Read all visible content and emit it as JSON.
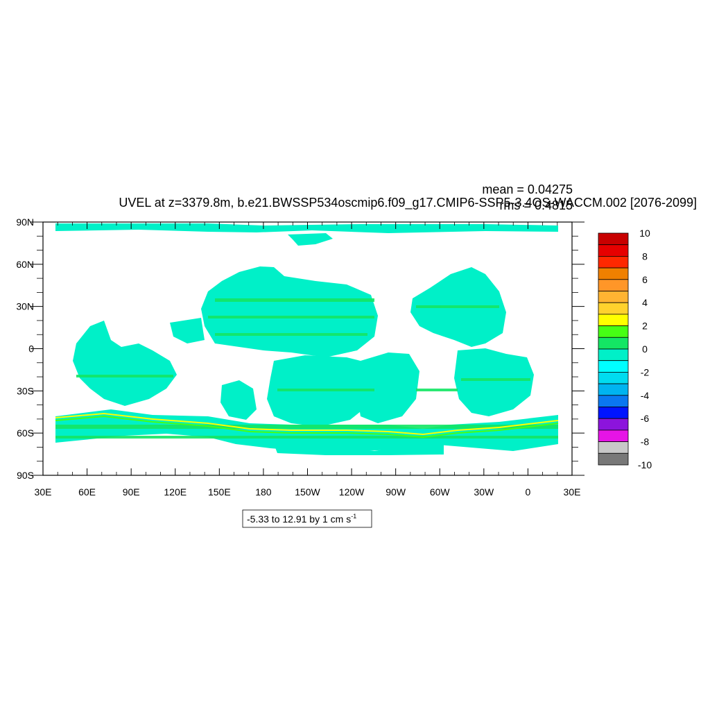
{
  "figure": {
    "title": "UVEL at z=3379.8m, b.e21.BWSSP534oscmip6.f09_g17.CMIP6-SSP5-3.4OS-WACCM.002 [2076-2099]",
    "stats_mean": "mean = 0.04275",
    "stats_rms": "rms = 0.4815",
    "contour_info_prefix": "-5.33 to 12.91 by 1 cm s",
    "contour_info_exponent": "-1"
  },
  "chart_data": {
    "type": "heatmap",
    "variable": "UVEL",
    "depth": "z=3379.8m",
    "period": "[2076-2099]",
    "mean": 0.04275,
    "rms": 0.4815,
    "data_min": -5.33,
    "data_max": 12.91,
    "contour_interval": 1,
    "units": "cm s-1",
    "x_axis": {
      "ticks": [
        "30E",
        "60E",
        "90E",
        "120E",
        "150E",
        "180",
        "150W",
        "120W",
        "90W",
        "60W",
        "30W",
        "0",
        "30E"
      ],
      "range_lon": [
        30,
        390
      ]
    },
    "y_axis": {
      "ticks": [
        "90N",
        "60N",
        "30N",
        "0",
        "30S",
        "60S",
        "90S"
      ],
      "range_lat": [
        -90,
        90
      ]
    },
    "colorbar": {
      "labels": [
        "10",
        "8",
        "6",
        "4",
        "2",
        "0",
        "-2",
        "-4",
        "-6",
        "-8",
        "-10"
      ],
      "bins": [
        {
          "from": 10,
          "to": 9,
          "color": "#c80000"
        },
        {
          "from": 9,
          "to": 8,
          "color": "#e60000"
        },
        {
          "from": 8,
          "to": 7,
          "color": "#ff2800"
        },
        {
          "from": 7,
          "to": 6,
          "color": "#f08000"
        },
        {
          "from": 6,
          "to": 5,
          "color": "#ff9628"
        },
        {
          "from": 5,
          "to": 4,
          "color": "#ffb432"
        },
        {
          "from": 4,
          "to": 3,
          "color": "#ffd22d"
        },
        {
          "from": 3,
          "to": 2,
          "color": "#ffff00"
        },
        {
          "from": 2,
          "to": 1,
          "color": "#46ff14"
        },
        {
          "from": 1,
          "to": 0,
          "color": "#14e664"
        },
        {
          "from": 0,
          "to": -1,
          "color": "#00f0c8"
        },
        {
          "from": -1,
          "to": -2,
          "color": "#00ffff"
        },
        {
          "from": -2,
          "to": -3,
          "color": "#00dcf0"
        },
        {
          "from": -3,
          "to": -4,
          "color": "#00b4f0"
        },
        {
          "from": -4,
          "to": -5,
          "color": "#0a78f0"
        },
        {
          "from": -5,
          "to": -6,
          "color": "#0014ff"
        },
        {
          "from": -6,
          "to": -7,
          "color": "#8c14dc"
        },
        {
          "from": -7,
          "to": -8,
          "color": "#e614e6"
        },
        {
          "from": -8,
          "to": -9,
          "color": "#c8c8c8"
        },
        {
          "from": -9,
          "to": -10,
          "color": "#787878"
        }
      ]
    },
    "dominant_field_colors": [
      "#00f0c8",
      "#14e664",
      "#46ff14",
      "#ffff00"
    ]
  }
}
